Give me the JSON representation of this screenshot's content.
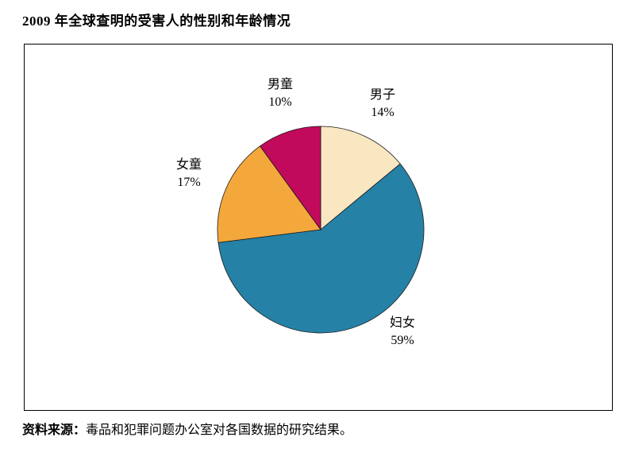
{
  "page": {
    "title": "2009 年全球查明的受害人的性别和年龄情况",
    "source_label": "资料来源：",
    "source_text": "毒品和犯罪问题办公室对各国数据的研究结果。"
  },
  "chart_data": {
    "type": "pie",
    "title": "2009 年全球查明的受害人的性别和年龄情况",
    "start_angle_deg": 0,
    "direction": "clockwise",
    "legend_position": "labels-around-pie",
    "slices": [
      {
        "label": "男子",
        "value": 14,
        "pct_label": "14%",
        "color": "#F8E7C1"
      },
      {
        "label": "妇女",
        "value": 59,
        "pct_label": "59%",
        "color": "#2581A6"
      },
      {
        "label": "女童",
        "value": 17,
        "pct_label": "17%",
        "color": "#F4A83C"
      },
      {
        "label": "男童",
        "value": 10,
        "pct_label": "10%",
        "color": "#C20A5C"
      }
    ],
    "outline_color": "#1a1a1a"
  }
}
